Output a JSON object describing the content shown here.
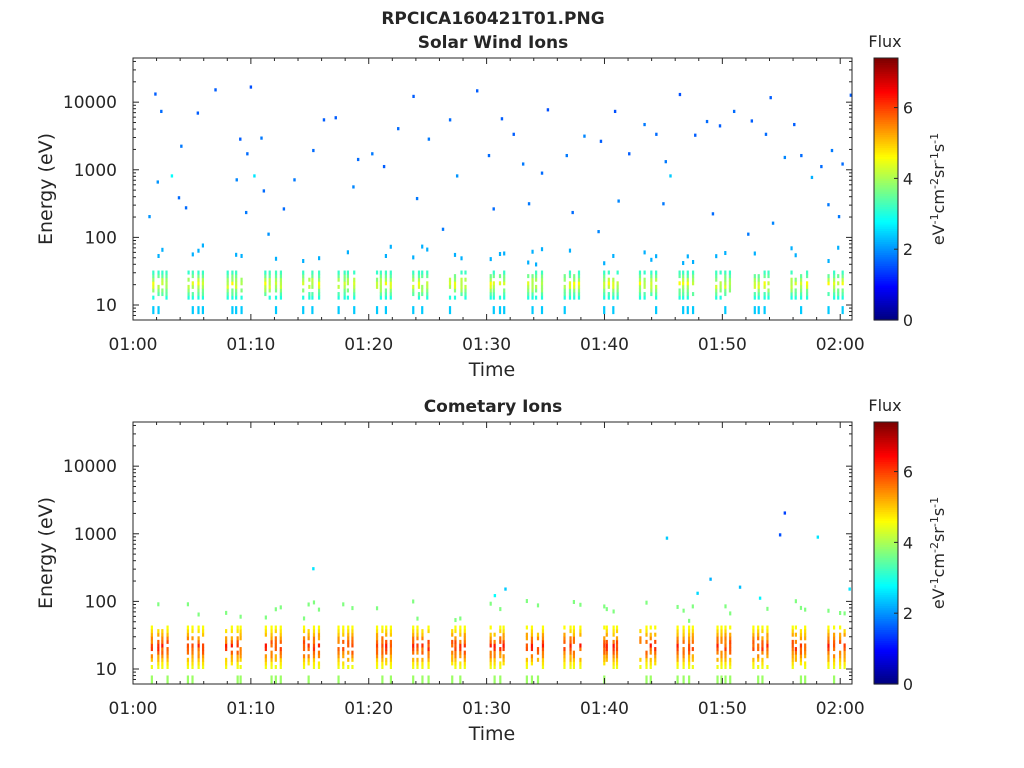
{
  "figure": {
    "title": "RPCICA160421T01.PNG"
  },
  "chart_data": [
    {
      "type": "heatmap",
      "title": "Solar Wind Ions",
      "xlabel": "Time",
      "ylabel": "Energy (eV)",
      "x_range": [
        "01:00",
        "02:01"
      ],
      "x_ticks": [
        "01:00",
        "01:10",
        "01:20",
        "01:30",
        "01:40",
        "01:50",
        "02:00"
      ],
      "y_scale": "log",
      "y_range": [
        6,
        45000
      ],
      "y_ticks": [
        10,
        100,
        1000,
        10000
      ],
      "colorbar": {
        "label": "Flux",
        "unit": "eV-1cm-2sr-1s-1",
        "colormap": "jet",
        "range": [
          0,
          7.4
        ],
        "ticks": [
          0,
          2,
          4,
          6
        ]
      },
      "grid": false,
      "band": {
        "description_values": "low-energy bursts every ~3.2 min near 12-30 eV",
        "energy_range": [
          12,
          30
        ],
        "flux_range": [
          3,
          4.8
        ],
        "burst_times_min": [
          2.2,
          5.2,
          8.5,
          11.8,
          15.0,
          18.0,
          21.2,
          24.3,
          27.5,
          30.8,
          34.0,
          37.2,
          40.4,
          43.6,
          46.8,
          50.0,
          53.2,
          56.4,
          59.6
        ]
      },
      "points": [
        [
          1.8,
          13000,
          1.6
        ],
        [
          2.3,
          7200,
          1.7
        ],
        [
          4.0,
          2200,
          1.8
        ],
        [
          3.2,
          800,
          2.8
        ],
        [
          2.0,
          650,
          2.0
        ],
        [
          3.8,
          380,
          1.7
        ],
        [
          5.4,
          6800,
          1.6
        ],
        [
          6.9,
          15000,
          1.6
        ],
        [
          9.9,
          16500,
          1.5
        ],
        [
          9.0,
          2800,
          1.6
        ],
        [
          9.6,
          1700,
          1.7
        ],
        [
          10.8,
          2900,
          1.8
        ],
        [
          10.2,
          800,
          2.6
        ],
        [
          8.7,
          700,
          1.9
        ],
        [
          11.0,
          480,
          1.7
        ],
        [
          13.6,
          700,
          1.8
        ],
        [
          15.2,
          1900,
          1.7
        ],
        [
          16.1,
          5400,
          1.6
        ],
        [
          17.1,
          5800,
          1.6
        ],
        [
          19.0,
          1400,
          1.7
        ],
        [
          20.2,
          1700,
          1.8
        ],
        [
          21.2,
          1100,
          1.6
        ],
        [
          22.4,
          4000,
          1.7
        ],
        [
          23.7,
          12000,
          1.6
        ],
        [
          25.0,
          2800,
          1.8
        ],
        [
          26.8,
          5400,
          1.7
        ],
        [
          27.4,
          800,
          2.0
        ],
        [
          29.1,
          14500,
          1.6
        ],
        [
          30.1,
          1600,
          1.7
        ],
        [
          31.2,
          5600,
          1.6
        ],
        [
          32.2,
          3300,
          1.6
        ],
        [
          33.0,
          1200,
          1.8
        ],
        [
          34.6,
          880,
          1.7
        ],
        [
          35.1,
          7600,
          1.5
        ],
        [
          36.7,
          1600,
          1.8
        ],
        [
          38.2,
          3100,
          1.9
        ],
        [
          39.6,
          2600,
          1.6
        ],
        [
          40.8,
          7200,
          1.5
        ],
        [
          42.0,
          1700,
          1.6
        ],
        [
          43.3,
          4600,
          1.8
        ],
        [
          44.3,
          3300,
          1.7
        ],
        [
          45.1,
          1300,
          1.8
        ],
        [
          45.5,
          800,
          2.4
        ],
        [
          46.3,
          12800,
          1.5
        ],
        [
          47.6,
          3200,
          1.6
        ],
        [
          48.6,
          5100,
          1.7
        ],
        [
          49.7,
          4400,
          1.6
        ],
        [
          50.9,
          7200,
          1.7
        ],
        [
          52.4,
          5200,
          1.6
        ],
        [
          53.6,
          3300,
          1.7
        ],
        [
          54.0,
          11500,
          1.6
        ],
        [
          55.2,
          1500,
          1.9
        ],
        [
          56.0,
          4600,
          1.6
        ],
        [
          56.6,
          1600,
          1.7
        ],
        [
          57.5,
          760,
          2.2
        ],
        [
          59.2,
          1900,
          1.8
        ],
        [
          60.1,
          1200,
          1.7
        ],
        [
          60.8,
          12500,
          1.6
        ],
        [
          58.3,
          1100,
          1.7
        ],
        [
          59.8,
          200,
          1.8
        ],
        [
          1.3,
          200,
          2.0
        ],
        [
          4.4,
          270,
          1.7
        ],
        [
          9.5,
          230,
          1.8
        ],
        [
          12.7,
          260,
          1.7
        ],
        [
          18.6,
          550,
          1.9
        ],
        [
          24.0,
          370,
          1.8
        ],
        [
          30.5,
          260,
          1.7
        ],
        [
          33.5,
          310,
          1.8
        ],
        [
          37.2,
          230,
          1.7
        ],
        [
          41.1,
          340,
          1.9
        ],
        [
          44.9,
          310,
          1.8
        ],
        [
          49.1,
          220,
          1.7
        ],
        [
          52.1,
          110,
          1.8
        ],
        [
          54.2,
          160,
          1.9
        ],
        [
          58.9,
          300,
          1.8
        ],
        [
          11.4,
          110,
          2.0
        ],
        [
          26.2,
          130,
          1.8
        ],
        [
          39.4,
          120,
          1.9
        ]
      ]
    },
    {
      "type": "heatmap",
      "title": "Cometary Ions",
      "xlabel": "Time",
      "ylabel": "Energy (eV)",
      "x_range": [
        "01:00",
        "02:01"
      ],
      "x_ticks": [
        "01:00",
        "01:10",
        "01:20",
        "01:30",
        "01:40",
        "01:50",
        "02:00"
      ],
      "y_scale": "log",
      "y_range": [
        6,
        45000
      ],
      "y_ticks": [
        10,
        100,
        1000,
        10000
      ],
      "colorbar": {
        "label": "Flux",
        "unit": "eV-1cm-2sr-1s-1",
        "colormap": "jet",
        "range": [
          0,
          7.4
        ],
        "ticks": [
          0,
          2,
          4,
          6
        ]
      },
      "grid": false,
      "band": {
        "description_values": "strong low-energy bursts every ~3.2 min near 10-40 eV",
        "energy_range": [
          10,
          40
        ],
        "flux_range": [
          4.5,
          6.5
        ],
        "burst_times_min": [
          2.2,
          5.2,
          8.5,
          11.8,
          15.0,
          18.0,
          21.2,
          24.3,
          27.5,
          30.8,
          34.0,
          37.2,
          40.4,
          43.6,
          46.8,
          50.0,
          53.2,
          56.4,
          59.6
        ]
      },
      "points": [
        [
          15.2,
          300,
          2.6
        ],
        [
          31.5,
          150,
          2.4
        ],
        [
          45.2,
          850,
          2.4
        ],
        [
          48.9,
          210,
          2.2
        ],
        [
          51.4,
          160,
          2.3
        ],
        [
          54.8,
          950,
          1.5
        ],
        [
          55.2,
          2000,
          1.4
        ],
        [
          58.0,
          880,
          2.6
        ],
        [
          60.7,
          150,
          2.6
        ],
        [
          30.6,
          120,
          2.8
        ],
        [
          47.8,
          130,
          2.5
        ],
        [
          53.1,
          110,
          2.7
        ]
      ]
    }
  ]
}
